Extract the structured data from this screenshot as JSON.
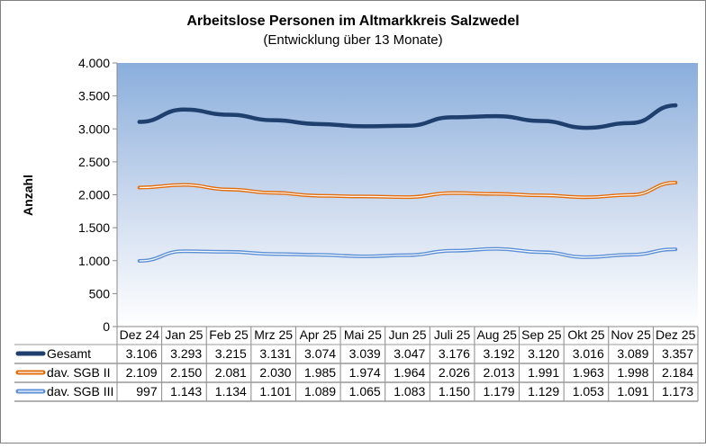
{
  "chart_data": {
    "type": "line",
    "title": "Arbeitslose Personen im Altmarkkreis Salzwedel",
    "subtitle": "(Entwicklung über 13 Monate)",
    "ylabel": "Anzahl",
    "xlabel": "",
    "ylim": [
      0,
      4000
    ],
    "yticks": [
      0,
      500,
      1000,
      1500,
      2000,
      2500,
      3000,
      3500,
      4000
    ],
    "ytick_labels": [
      "0",
      "500",
      "1.000",
      "1.500",
      "2.000",
      "2.500",
      "3.000",
      "3.500",
      "4.000"
    ],
    "grid": false,
    "legend": "data-table",
    "categories": [
      "Dez 24",
      "Jan 25",
      "Feb 25",
      "Mrz 25",
      "Apr 25",
      "Mai 25",
      "Jun 25",
      "Juli 25",
      "Aug 25",
      "Sep 25",
      "Okt 25",
      "Nov 25",
      "Dez 25"
    ],
    "series": [
      {
        "name": "Gesamt",
        "color": "#1f3f6e",
        "values": [
          3106,
          3293,
          3215,
          3131,
          3074,
          3039,
          3047,
          3176,
          3192,
          3120,
          3016,
          3089,
          3357
        ],
        "labels": [
          "3.106",
          "3.293",
          "3.215",
          "3.131",
          "3.074",
          "3.039",
          "3.047",
          "3.176",
          "3.192",
          "3.120",
          "3.016",
          "3.089",
          "3.357"
        ]
      },
      {
        "name": "dav. SGB II",
        "color": "#e36c0a",
        "values": [
          2109,
          2150,
          2081,
          2030,
          1985,
          1974,
          1964,
          2026,
          2013,
          1991,
          1963,
          1998,
          2184
        ],
        "labels": [
          "2.109",
          "2.150",
          "2.081",
          "2.030",
          "1.985",
          "1.974",
          "1.964",
          "2.026",
          "2.013",
          "1.991",
          "1.963",
          "1.998",
          "2.184"
        ]
      },
      {
        "name": "dav. SGB III",
        "color": "#5b8fd6",
        "values": [
          997,
          1143,
          1134,
          1101,
          1089,
          1065,
          1083,
          1150,
          1179,
          1129,
          1053,
          1091,
          1173
        ],
        "labels": [
          "997",
          "1.143",
          "1.134",
          "1.101",
          "1.089",
          "1.065",
          "1.083",
          "1.150",
          "1.179",
          "1.129",
          "1.053",
          "1.091",
          "1.173"
        ]
      }
    ]
  }
}
